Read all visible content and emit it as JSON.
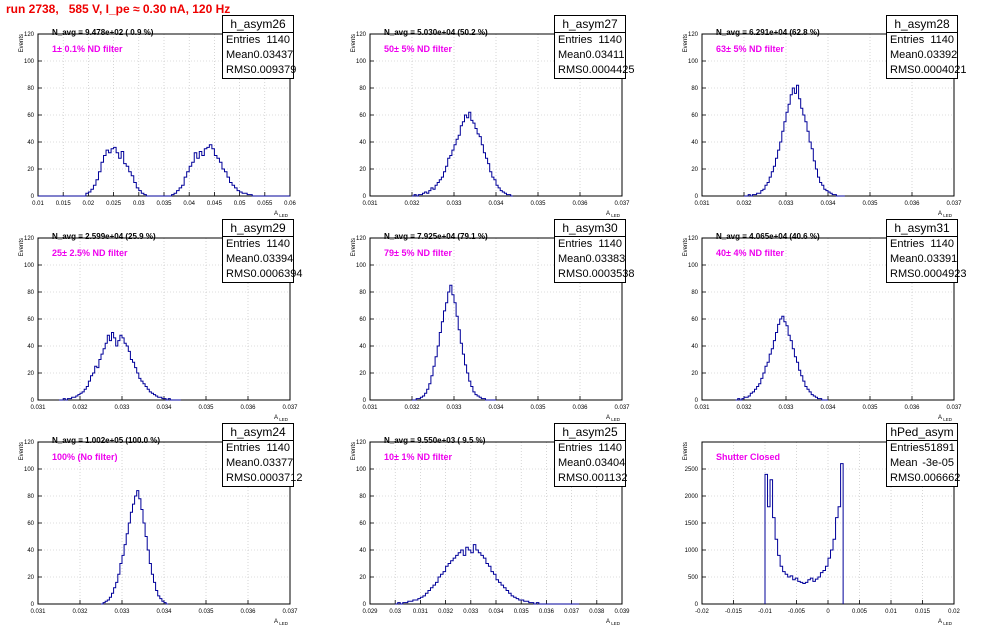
{
  "run_title": "run 2738,   585 V, I_pe ≈ 0.30 nA, 120 Hz",
  "chart_data": [
    {
      "type": "histogram",
      "histo_name": "h_asym26",
      "entries": "1140",
      "mean": "0.03437",
      "rms": "0.009379",
      "n_avg_label": "N_avg = 9.478e+02 ( 0.9 %)",
      "filter_note": "1± 0.1% ND filter",
      "ylabel": "Events",
      "xlabel": "A_LED",
      "ylim": [
        0,
        120
      ],
      "yticks": [
        0,
        20,
        40,
        60,
        80,
        100,
        120
      ],
      "xlim": [
        0.01,
        0.06
      ],
      "xticks": [
        0.01,
        0.015,
        0.02,
        0.025,
        0.03,
        0.035,
        0.04,
        0.045,
        0.05,
        0.055,
        0.06
      ],
      "xtick_labels": [
        "0.01",
        "0.015",
        "0.02",
        "0.025",
        "0.03",
        "0.035",
        "0.04",
        "0.045",
        "0.05",
        "0.055",
        "0.06"
      ],
      "bin_start": 0.01,
      "bin_width": 0.0005,
      "counts": [
        0,
        0,
        0,
        0,
        0,
        0,
        0,
        0,
        0,
        0,
        0,
        0,
        0,
        0,
        0,
        0,
        0,
        0,
        0,
        2,
        3,
        5,
        8,
        12,
        18,
        25,
        30,
        34,
        32,
        35,
        36,
        32,
        28,
        33,
        24,
        22,
        18,
        15,
        10,
        6,
        4,
        2,
        1,
        0,
        0,
        0,
        0,
        0,
        0,
        0,
        0,
        0,
        0,
        1,
        2,
        4,
        6,
        8,
        14,
        18,
        22,
        25,
        32,
        28,
        33,
        30,
        35,
        36,
        38,
        35,
        30,
        28,
        25,
        20,
        18,
        14,
        10,
        8,
        6,
        4,
        3,
        2,
        2,
        1,
        1,
        0,
        0,
        0,
        0,
        0,
        0,
        0,
        0,
        0,
        0,
        0,
        0,
        0,
        0,
        0
      ]
    },
    {
      "type": "histogram",
      "histo_name": "h_asym27",
      "entries": "1140",
      "mean": "0.03411",
      "rms": "0.0004425",
      "n_avg_label": "N_avg = 5.030e+04 (50.2 %)",
      "filter_note": "50± 5% ND filter",
      "ylabel": "Events",
      "xlabel": "A_LED",
      "ylim": [
        0,
        120
      ],
      "yticks": [
        0,
        20,
        40,
        60,
        80,
        100,
        120
      ],
      "xlim": [
        0.031,
        0.037
      ],
      "xticks": [
        0.031,
        0.032,
        0.033,
        0.034,
        0.035,
        0.036,
        0.037
      ],
      "xtick_labels": [
        "0.031",
        "0.032",
        "0.033",
        "0.034",
        "0.035",
        "0.036",
        "0.037"
      ],
      "bin_start": 0.032,
      "bin_width": 5e-05,
      "counts": [
        0,
        1,
        0,
        1,
        1,
        2,
        3,
        2,
        4,
        6,
        5,
        8,
        10,
        12,
        14,
        18,
        22,
        28,
        30,
        34,
        38,
        42,
        45,
        52,
        55,
        60,
        58,
        62,
        56,
        54,
        50,
        46,
        44,
        38,
        32,
        28,
        24,
        18,
        14,
        12,
        8,
        6,
        4,
        3,
        2,
        1,
        1,
        0
      ]
    },
    {
      "type": "histogram",
      "histo_name": "h_asym28",
      "entries": "1140",
      "mean": "0.03392",
      "rms": "0.0004021",
      "n_avg_label": "N_avg = 6.291e+04 (62.8 %)",
      "filter_note": "63± 5% ND filter",
      "ylabel": "Events",
      "xlabel": "A_LED",
      "ylim": [
        0,
        120
      ],
      "yticks": [
        0,
        20,
        40,
        60,
        80,
        100,
        120
      ],
      "xlim": [
        0.031,
        0.037
      ],
      "xticks": [
        0.031,
        0.032,
        0.033,
        0.034,
        0.035,
        0.036,
        0.037
      ],
      "xtick_labels": [
        "0.031",
        "0.032",
        "0.033",
        "0.034",
        "0.035",
        "0.036",
        "0.037"
      ],
      "bin_start": 0.032,
      "bin_width": 5e-05,
      "counts": [
        0,
        0,
        1,
        0,
        1,
        1,
        2,
        2,
        4,
        5,
        8,
        10,
        14,
        18,
        22,
        28,
        34,
        40,
        48,
        55,
        62,
        68,
        75,
        80,
        76,
        82,
        72,
        65,
        60,
        55,
        48,
        40,
        35,
        26,
        20,
        14,
        10,
        8,
        5,
        4,
        3,
        2,
        1,
        1,
        0,
        0,
        0,
        0
      ]
    },
    {
      "type": "histogram",
      "histo_name": "h_asym29",
      "entries": "1140",
      "mean": "0.03394",
      "rms": "0.0006394",
      "n_avg_label": "N_avg = 2.599e+04 (25.9 %)",
      "filter_note": "25± 2.5% ND filter",
      "ylabel": "Events",
      "xlabel": "A_LED",
      "ylim": [
        0,
        120
      ],
      "yticks": [
        0,
        20,
        40,
        60,
        80,
        100,
        120
      ],
      "xlim": [
        0.031,
        0.037
      ],
      "xticks": [
        0.031,
        0.032,
        0.033,
        0.034,
        0.035,
        0.036,
        0.037
      ],
      "xtick_labels": [
        "0.031",
        "0.032",
        "0.033",
        "0.034",
        "0.035",
        "0.036",
        "0.037"
      ],
      "bin_start": 0.0315,
      "bin_width": 5e-05,
      "counts": [
        0,
        0,
        1,
        0,
        1,
        1,
        2,
        2,
        3,
        4,
        5,
        6,
        8,
        10,
        14,
        18,
        20,
        25,
        24,
        30,
        34,
        38,
        42,
        48,
        44,
        50,
        46,
        40,
        44,
        48,
        46,
        42,
        40,
        36,
        30,
        28,
        24,
        20,
        16,
        14,
        12,
        10,
        8,
        6,
        5,
        4,
        3,
        2,
        2,
        1,
        1,
        0,
        1,
        0,
        0,
        0,
        0,
        0
      ]
    },
    {
      "type": "histogram",
      "histo_name": "h_asym30",
      "entries": "1140",
      "mean": "0.03383",
      "rms": "0.0003538",
      "n_avg_label": "N_avg = 7.925e+04 (79.1 %)",
      "filter_note": "79± 5% ND filter",
      "ylabel": "Events",
      "xlabel": "A_LED",
      "ylim": [
        0,
        120
      ],
      "yticks": [
        0,
        20,
        40,
        60,
        80,
        100,
        120
      ],
      "xlim": [
        0.031,
        0.037
      ],
      "xticks": [
        0.031,
        0.032,
        0.033,
        0.034,
        0.035,
        0.036,
        0.037
      ],
      "xtick_labels": [
        "0.031",
        "0.032",
        "0.033",
        "0.034",
        "0.035",
        "0.036",
        "0.037"
      ],
      "bin_start": 0.032,
      "bin_width": 5e-05,
      "counts": [
        0,
        0,
        1,
        1,
        2,
        3,
        5,
        8,
        12,
        18,
        25,
        32,
        40,
        50,
        58,
        66,
        72,
        80,
        85,
        78,
        72,
        62,
        52,
        42,
        34,
        26,
        20,
        14,
        10,
        6,
        4,
        3,
        2,
        1,
        1,
        0,
        0,
        0,
        0,
        0
      ]
    },
    {
      "type": "histogram",
      "histo_name": "h_asym31",
      "entries": "1140",
      "mean": "0.03391",
      "rms": "0.0004923",
      "n_avg_label": "N_avg = 4.065e+04 (40.6 %)",
      "filter_note": "40± 4% ND filter",
      "ylabel": "Events",
      "xlabel": "A_LED",
      "ylim": [
        0,
        120
      ],
      "yticks": [
        0,
        20,
        40,
        60,
        80,
        100,
        120
      ],
      "xlim": [
        0.031,
        0.037
      ],
      "xticks": [
        0.031,
        0.032,
        0.033,
        0.034,
        0.035,
        0.036,
        0.037
      ],
      "xtick_labels": [
        "0.031",
        "0.032",
        "0.033",
        "0.034",
        "0.035",
        "0.036",
        "0.037"
      ],
      "bin_start": 0.0318,
      "bin_width": 5e-05,
      "counts": [
        0,
        1,
        0,
        1,
        2,
        2,
        3,
        5,
        6,
        8,
        10,
        12,
        16,
        20,
        25,
        28,
        34,
        38,
        44,
        50,
        56,
        60,
        62,
        58,
        55,
        48,
        44,
        38,
        32,
        28,
        22,
        18,
        14,
        10,
        8,
        6,
        4,
        3,
        2,
        1,
        1,
        0,
        0,
        0
      ]
    },
    {
      "type": "histogram",
      "histo_name": "h_asym24",
      "entries": "1140",
      "mean": "0.03377",
      "rms": "0.0003712",
      "n_avg_label": "N_avg = 1.002e+05 (100.0 %)",
      "filter_note": "100% (No filter)",
      "ylabel": "Events",
      "xlabel": "A_LED",
      "ylim": [
        0,
        120
      ],
      "yticks": [
        0,
        20,
        40,
        60,
        80,
        100,
        120
      ],
      "xlim": [
        0.031,
        0.037
      ],
      "xticks": [
        0.031,
        0.032,
        0.033,
        0.034,
        0.035,
        0.036,
        0.037
      ],
      "xtick_labels": [
        "0.031",
        "0.032",
        "0.033",
        "0.034",
        "0.035",
        "0.036",
        "0.037"
      ],
      "bin_start": 0.0325,
      "bin_width": 5e-05,
      "counts": [
        0,
        1,
        2,
        3,
        5,
        8,
        12,
        16,
        22,
        30,
        36,
        44,
        52,
        60,
        68,
        74,
        80,
        84,
        78,
        70,
        60,
        50,
        40,
        30,
        22,
        16,
        10,
        6,
        4,
        2,
        1,
        0
      ]
    },
    {
      "type": "histogram",
      "histo_name": "h_asym25",
      "entries": "1140",
      "mean": "0.03404",
      "rms": "0.001132",
      "n_avg_label": "N_avg = 9.550e+03 ( 9.5 %)",
      "filter_note": "10± 1% ND filter",
      "ylabel": "Events",
      "xlabel": "A_LED",
      "ylim": [
        0,
        120
      ],
      "yticks": [
        0,
        20,
        40,
        60,
        80,
        100,
        120
      ],
      "xlim": [
        0.029,
        0.039
      ],
      "xticks": [
        0.029,
        0.03,
        0.031,
        0.032,
        0.033,
        0.034,
        0.035,
        0.036,
        0.037,
        0.038,
        0.039
      ],
      "xtick_labels": [
        "0.029",
        "0.03",
        "0.031",
        "0.032",
        "0.033",
        "0.034",
        "0.035",
        "0.036",
        "0.037",
        "0.038",
        "0.039"
      ],
      "bin_start": 0.03,
      "bin_width": 0.0001,
      "counts": [
        0,
        1,
        0,
        1,
        1,
        2,
        2,
        3,
        3,
        4,
        5,
        6,
        8,
        10,
        12,
        14,
        16,
        20,
        22,
        24,
        28,
        30,
        32,
        34,
        36,
        38,
        40,
        36,
        42,
        40,
        38,
        44,
        40,
        38,
        36,
        34,
        30,
        28,
        24,
        22,
        18,
        16,
        14,
        12,
        10,
        8,
        6,
        5,
        4,
        3,
        3,
        2,
        2,
        1,
        1,
        0,
        1,
        0,
        0,
        0,
        0,
        0,
        0,
        0,
        0,
        0,
        0,
        0,
        0,
        0,
        0,
        0,
        0
      ]
    },
    {
      "type": "histogram",
      "histo_name": "hPed_asym",
      "entries": "51891",
      "mean": "-3e-05",
      "rms": "0.006662",
      "n_avg_label": "",
      "filter_note": "Shutter Closed",
      "ylabel": "Events",
      "xlabel": "A_LED",
      "ylim": [
        0,
        3000
      ],
      "yticks": [
        0,
        500,
        1000,
        1500,
        2000,
        2500
      ],
      "xlim": [
        -0.02,
        0.02
      ],
      "xticks": [
        -0.02,
        -0.015,
        -0.01,
        -0.005,
        0,
        0.005,
        0.01,
        0.015,
        0.02
      ],
      "xtick_labels": [
        "-0.02",
        "-0.015",
        "-0.01",
        "-0.005",
        "0",
        "0.005",
        "0.01",
        "0.015",
        "0.02"
      ],
      "bin_start": -0.01,
      "bin_width": 0.0004,
      "counts": [
        2400,
        1800,
        2300,
        1600,
        1200,
        900,
        700,
        600,
        550,
        500,
        520,
        450,
        480,
        420,
        400,
        380,
        400,
        450,
        480,
        420,
        460,
        500,
        580,
        620,
        700,
        850,
        1000,
        1200,
        1600,
        1800,
        2600
      ]
    }
  ]
}
